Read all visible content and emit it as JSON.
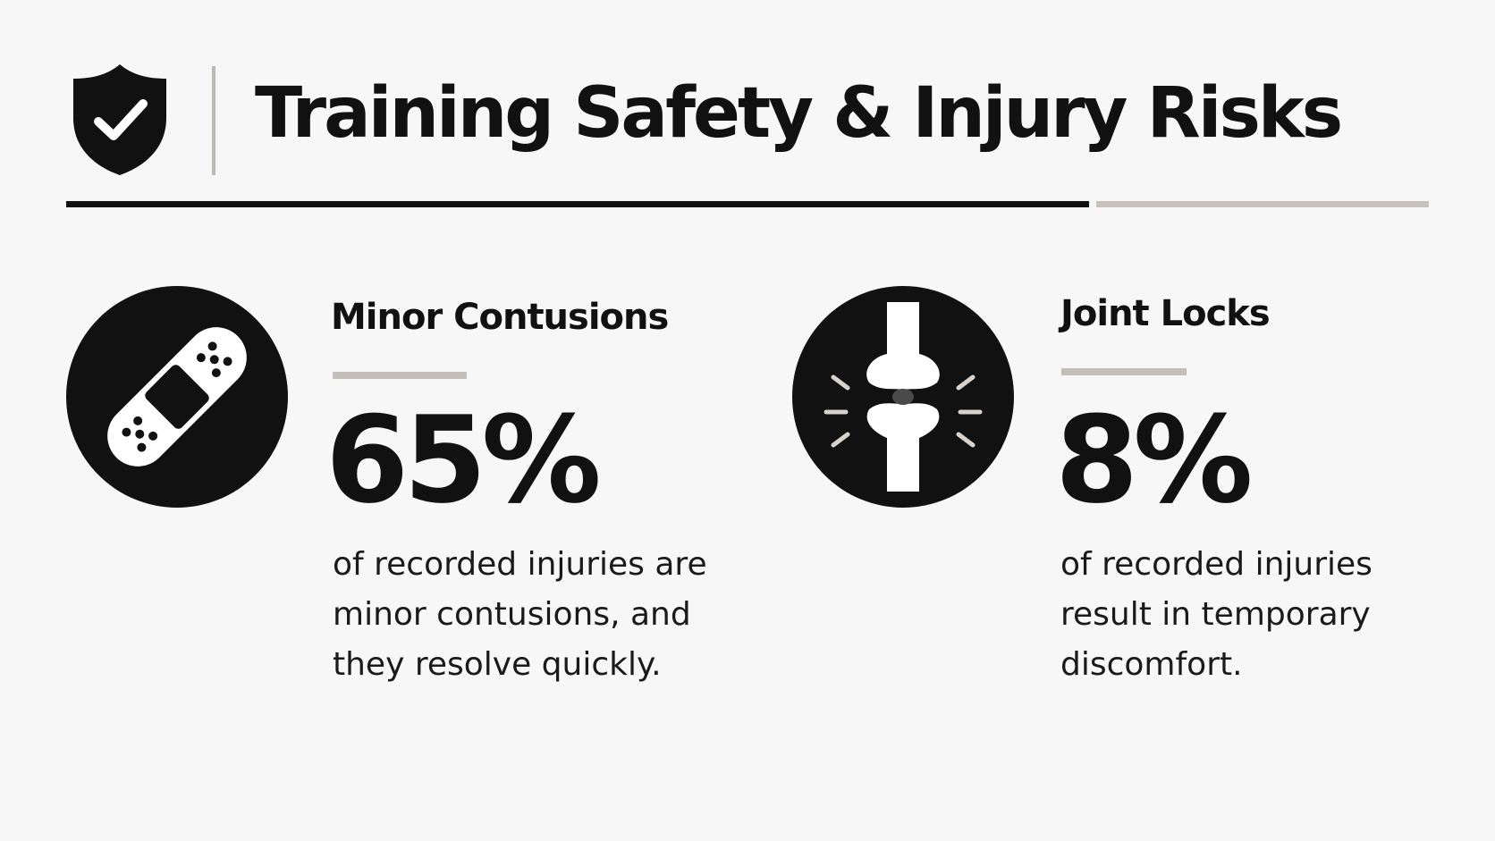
{
  "header": {
    "title": "Training Safety & Injury Risks",
    "icon": "shield-check-icon"
  },
  "stats": [
    {
      "icon": "bandage-icon",
      "title": "Minor Contusions",
      "value": "65%",
      "value_fraction": 0.65,
      "description": "of recorded injuries are minor contusions, and they resolve quickly."
    },
    {
      "icon": "knee-joint-icon",
      "title": "Joint Locks",
      "value": "8%",
      "value_fraction": 0.08,
      "description": "of recorded injuries result in temporary discomfort."
    }
  ],
  "colors": {
    "background": "#f7f7f7",
    "ink": "#111111",
    "accent_gray": "#c4bfb9"
  }
}
